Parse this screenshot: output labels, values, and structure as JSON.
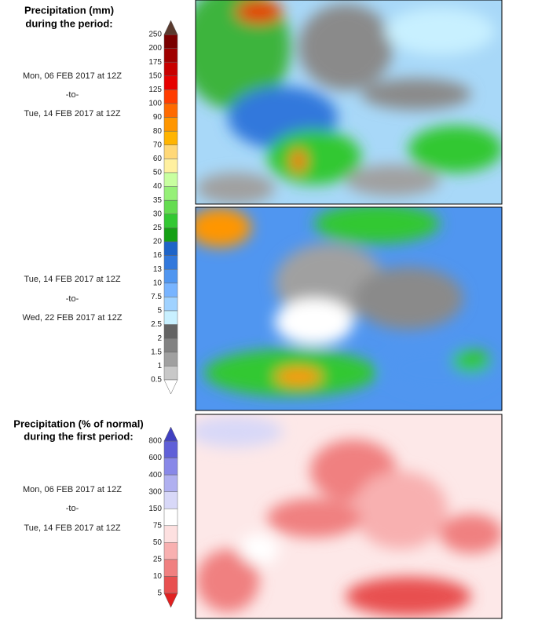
{
  "precipitation": {
    "title_lines": [
      "Precipitation (mm)",
      "during the period:"
    ],
    "periods": [
      {
        "start": "Mon, 06 FEB 2017 at 12Z",
        "sep": "-to-",
        "end": "Tue, 14 FEB 2017 at 12Z"
      },
      {
        "start": "Tue, 14 FEB 2017 at 12Z",
        "sep": "-to-",
        "end": "Wed, 22 FEB 2017 at 12Z"
      }
    ],
    "colorbar": {
      "labels": [
        "250",
        "200",
        "175",
        "150",
        "125",
        "100",
        "90",
        "80",
        "70",
        "60",
        "50",
        "40",
        "35",
        "30",
        "25",
        "20",
        "16",
        "13",
        "10",
        "7.5",
        "5",
        "2.5",
        "2",
        "1.5",
        "1",
        "0.5"
      ],
      "colors": [
        "#7a0000",
        "#a00000",
        "#c80000",
        "#e60000",
        "#ff3c00",
        "#ff6a00",
        "#ff9600",
        "#ffb400",
        "#ffd878",
        "#fff0a0",
        "#c8ffa0",
        "#96f078",
        "#64dc50",
        "#32c832",
        "#14a014",
        "#1e64c8",
        "#3278dc",
        "#5096f0",
        "#78b4ff",
        "#a0d2ff",
        "#c8f0ff",
        "#646464",
        "#828282",
        "#a0a0a0",
        "#c8c8c8"
      ],
      "top_color": "#5a3a2e",
      "bottom_color": "#ffffff"
    }
  },
  "percent_of_normal": {
    "title_lines": [
      "Precipitation (% of normal)",
      "during the first period:"
    ],
    "period": {
      "start": "Mon, 06 FEB 2017 at 12Z",
      "sep": "-to-",
      "end": "Tue, 14 FEB 2017 at 12Z"
    },
    "colorbar": {
      "labels": [
        "800",
        "600",
        "400",
        "300",
        "150",
        "75",
        "50",
        "25",
        "10",
        "5"
      ],
      "colors": [
        "#6060d8",
        "#8888e8",
        "#b0b0f0",
        "#d8d8f8",
        "#ffffff",
        "#fde0e0",
        "#f8b0b0",
        "#f08080",
        "#e85050"
      ],
      "top_color": "#4040c0",
      "bottom_color": "#e02020"
    }
  }
}
